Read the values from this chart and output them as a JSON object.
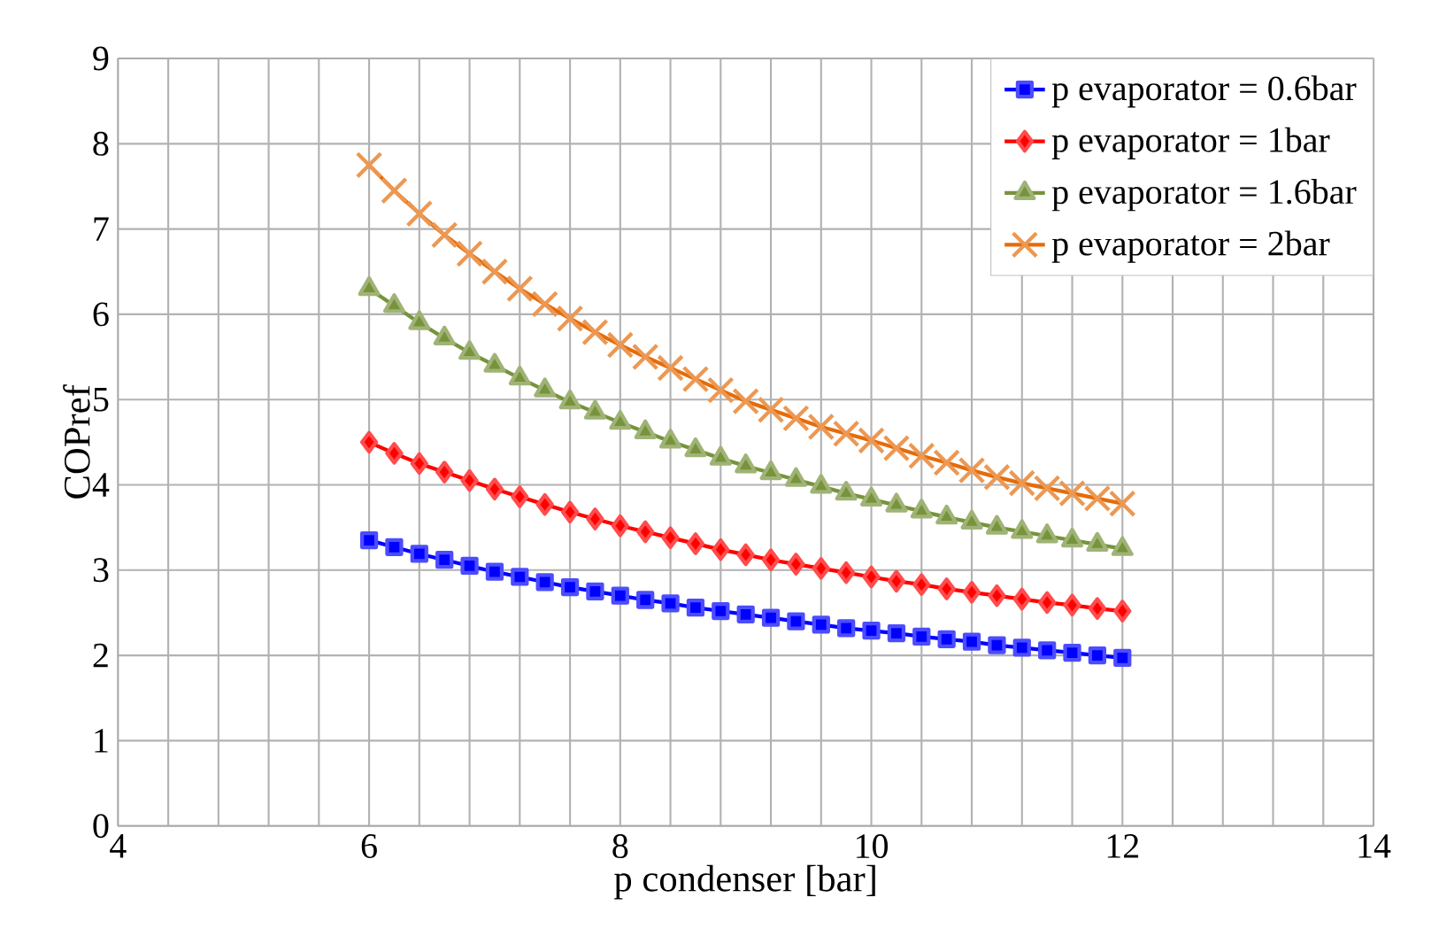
{
  "chart_data": {
    "type": "line",
    "xlabel": "p condenser [bar]",
    "ylabel": "COPref",
    "xlim": [
      4,
      14
    ],
    "xticks": [
      4,
      6,
      8,
      10,
      12,
      14
    ],
    "ylim": [
      0,
      9
    ],
    "yticks": [
      0,
      1,
      2,
      3,
      4,
      5,
      6,
      7,
      8,
      9
    ],
    "grid": true,
    "legend": "top right",
    "x": [
      6,
      6.2,
      6.4,
      6.6,
      6.8,
      7,
      7.2,
      7.4,
      7.6,
      7.8,
      8,
      8.2,
      8.4,
      8.6,
      8.8,
      9,
      9.2,
      9.4,
      9.6,
      9.8,
      10,
      10.2,
      10.4,
      10.6,
      10.8,
      11,
      11.2,
      11.4,
      11.6,
      11.8,
      12
    ],
    "series": [
      {
        "name": "p evaporator = 0.6bar",
        "color": "#0000ff",
        "marker": "square",
        "values": [
          3.35,
          3.27,
          3.19,
          3.12,
          3.05,
          2.98,
          2.92,
          2.86,
          2.8,
          2.75,
          2.7,
          2.65,
          2.61,
          2.56,
          2.52,
          2.48,
          2.44,
          2.4,
          2.36,
          2.32,
          2.29,
          2.26,
          2.22,
          2.19,
          2.16,
          2.12,
          2.09,
          2.06,
          2.03,
          2.0,
          1.97
        ]
      },
      {
        "name": "p evaporator = 1bar",
        "color": "#ff0000",
        "marker": "diamond",
        "values": [
          4.5,
          4.37,
          4.25,
          4.15,
          4.05,
          3.95,
          3.86,
          3.77,
          3.68,
          3.6,
          3.52,
          3.45,
          3.38,
          3.31,
          3.24,
          3.18,
          3.12,
          3.07,
          3.02,
          2.97,
          2.92,
          2.87,
          2.83,
          2.78,
          2.74,
          2.7,
          2.66,
          2.62,
          2.59,
          2.55,
          2.52
        ]
      },
      {
        "name": "p evaporator = 1.6bar",
        "color": "#77933c",
        "marker": "triangle",
        "values": [
          6.3,
          6.1,
          5.9,
          5.72,
          5.55,
          5.4,
          5.25,
          5.11,
          4.97,
          4.85,
          4.73,
          4.62,
          4.51,
          4.41,
          4.31,
          4.22,
          4.14,
          4.06,
          3.98,
          3.9,
          3.83,
          3.76,
          3.69,
          3.62,
          3.56,
          3.5,
          3.45,
          3.4,
          3.35,
          3.3,
          3.25
        ]
      },
      {
        "name": "p evaporator = 2bar",
        "color": "#e46c0a",
        "marker": "cross",
        "values": [
          7.75,
          7.45,
          7.18,
          6.93,
          6.71,
          6.5,
          6.3,
          6.12,
          5.95,
          5.79,
          5.64,
          5.5,
          5.37,
          5.24,
          5.11,
          4.98,
          4.88,
          4.78,
          4.68,
          4.6,
          4.52,
          4.43,
          4.34,
          4.26,
          4.17,
          4.09,
          4.02,
          3.96,
          3.9,
          3.84,
          3.78
        ]
      }
    ]
  }
}
